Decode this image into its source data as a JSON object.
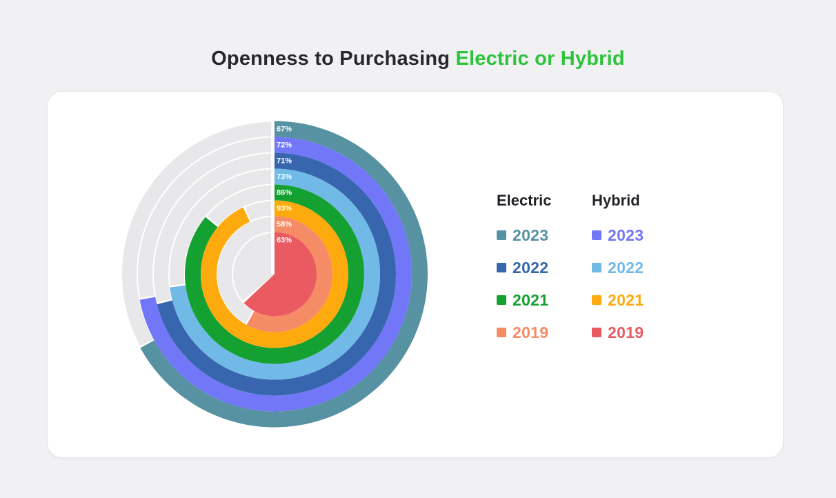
{
  "page": {
    "background": "#F1F1F3",
    "card_background": "#FFFFFF"
  },
  "title": {
    "prefix": "Openness to Purchasing ",
    "highlight": "Electric or Hybrid",
    "prefix_color": "#26282C",
    "highlight_color": "#2CC43A"
  },
  "chart_data": {
    "type": "radial_bar",
    "title": "Openness to Purchasing Electric or Hybrid",
    "unit": "%",
    "start_angle": "12 o'clock, clockwise",
    "ring_order": "outer_to_inner",
    "track_color": "#E8E8EA",
    "label_color": "#FFFFFF",
    "rings": [
      {
        "group": "Electric",
        "year": "2023",
        "value": 67,
        "label": "67%",
        "color": "#5792A3"
      },
      {
        "group": "Hybrid",
        "year": "2023",
        "value": 72,
        "label": "72%",
        "color": "#7177F6"
      },
      {
        "group": "Electric",
        "year": "2022",
        "value": 71,
        "label": "71%",
        "color": "#3766AE"
      },
      {
        "group": "Hybrid",
        "year": "2022",
        "value": 73,
        "label": "73%",
        "color": "#71BAE7"
      },
      {
        "group": "Electric",
        "year": "2021",
        "value": 86,
        "label": "86%",
        "color": "#15A131"
      },
      {
        "group": "Hybrid",
        "year": "2021",
        "value": 93,
        "label": "93%",
        "color": "#FDAA0F"
      },
      {
        "group": "Electric",
        "year": "2019",
        "value": 58,
        "label": "58%",
        "color": "#F68C66"
      },
      {
        "group": "Hybrid",
        "year": "2019",
        "value": 63,
        "label": "63%",
        "color": "#E95B60"
      }
    ]
  },
  "legend": {
    "columns": [
      {
        "header": "Electric",
        "items": [
          {
            "year": "2023",
            "color": "#5792A3"
          },
          {
            "year": "2022",
            "color": "#3766AE"
          },
          {
            "year": "2021",
            "color": "#15A131"
          },
          {
            "year": "2019",
            "color": "#F68C66"
          }
        ]
      },
      {
        "header": "Hybrid",
        "items": [
          {
            "year": "2023",
            "color": "#7177F6"
          },
          {
            "year": "2022",
            "color": "#71BAE7"
          },
          {
            "year": "2021",
            "color": "#FDAA0F"
          },
          {
            "year": "2019",
            "color": "#E95B60"
          }
        ]
      }
    ]
  }
}
